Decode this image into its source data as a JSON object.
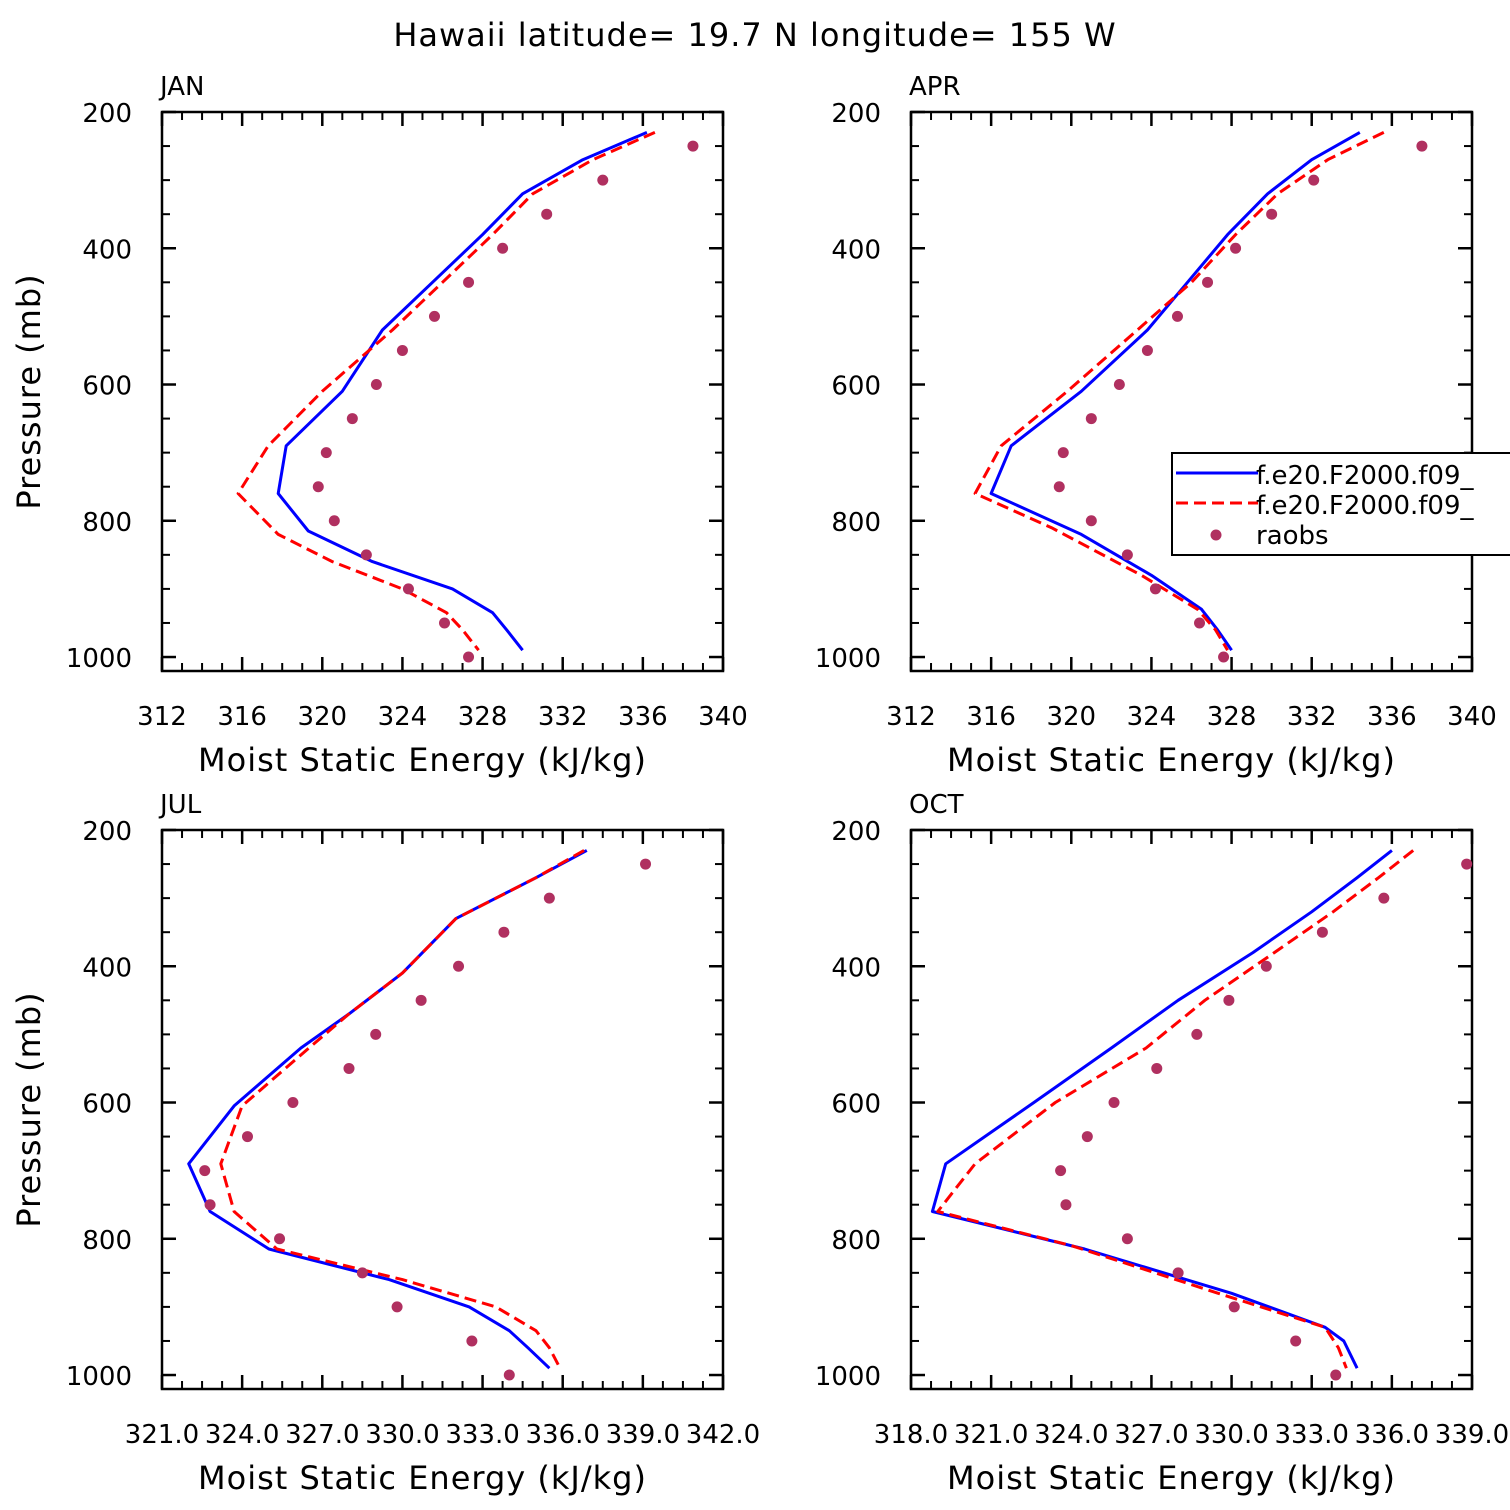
{
  "figure": {
    "title": "Hawaii  latitude= 19.7 N longitude= 155 W"
  },
  "legend": {
    "entries": [
      {
        "label": "f.e20.F2000.f09_",
        "color": "#0000ff",
        "style": "solid"
      },
      {
        "label": "f.e20.F2000.f09_",
        "color": "#ff0000",
        "style": "dashed"
      },
      {
        "label": "raobs",
        "color": "#b03060",
        "style": "dot"
      }
    ]
  },
  "chart_data": [
    {
      "type": "line",
      "panel": "JAN",
      "xlabel": "Moist Static Energy (kJ/kg)",
      "ylabel": "Pressure (mb)",
      "xlim": [
        312,
        340
      ],
      "ylim": [
        1000,
        200
      ],
      "xticks": [
        "312",
        "316",
        "320",
        "324",
        "328",
        "332",
        "336",
        "340"
      ],
      "yticks": [
        "200",
        "400",
        "600",
        "800",
        "1000"
      ],
      "series": [
        {
          "name": "f.e20.F2000.f09_",
          "color": "#0000ff",
          "style": "solid",
          "x": [
            336.2,
            333.0,
            330.0,
            328.0,
            325.5,
            323.0,
            321.0,
            318.2,
            317.8,
            319.3,
            322.5,
            326.5,
            328.5,
            329.2,
            330.0
          ],
          "y": [
            230,
            270,
            320,
            380,
            450,
            520,
            610,
            690,
            760,
            815,
            860,
            900,
            935,
            960,
            990
          ]
        },
        {
          "name": "f.e20.F2000.f09_",
          "color": "#ff0000",
          "style": "dashed",
          "x": [
            336.6,
            333.5,
            330.5,
            328.5,
            326.0,
            323.5,
            320.0,
            317.3,
            315.8,
            317.8,
            320.5,
            324.0,
            326.2,
            327.0,
            327.8
          ],
          "y": [
            230,
            270,
            320,
            380,
            450,
            520,
            610,
            690,
            760,
            820,
            860,
            900,
            935,
            960,
            990
          ]
        },
        {
          "name": "raobs",
          "color": "#b03060",
          "style": "dot",
          "x": [
            338.5,
            334.0,
            331.2,
            329.0,
            327.3,
            325.6,
            324.0,
            322.7,
            321.5,
            320.2,
            319.8,
            320.6,
            322.2,
            324.3,
            326.1,
            327.3
          ],
          "y": [
            250,
            300,
            350,
            400,
            450,
            500,
            550,
            600,
            650,
            700,
            750,
            800,
            850,
            900,
            950,
            1000
          ]
        }
      ]
    },
    {
      "type": "line",
      "panel": "APR",
      "xlabel": "Moist Static Energy (kJ/kg)",
      "ylabel": "",
      "xlim": [
        312,
        340
      ],
      "ylim": [
        1000,
        200
      ],
      "xticks": [
        "312",
        "316",
        "320",
        "324",
        "328",
        "332",
        "336",
        "340"
      ],
      "yticks": [
        "200",
        "400",
        "600",
        "800",
        "1000"
      ],
      "series": [
        {
          "name": "f.e20.F2000.f09_",
          "color": "#0000ff",
          "style": "solid",
          "x": [
            334.4,
            332.0,
            329.8,
            327.8,
            325.8,
            323.8,
            320.5,
            317.0,
            316.0,
            320.5,
            324.0,
            326.5,
            327.3,
            328.0
          ],
          "y": [
            230,
            270,
            320,
            380,
            450,
            520,
            610,
            690,
            760,
            820,
            880,
            930,
            960,
            990
          ]
        },
        {
          "name": "f.e20.F2000.f09_",
          "color": "#ff0000",
          "style": "dashed",
          "x": [
            335.6,
            332.8,
            330.3,
            328.2,
            326.0,
            323.3,
            319.8,
            316.5,
            315.2,
            319.0,
            323.5,
            326.3,
            327.2,
            327.8
          ],
          "y": [
            230,
            270,
            320,
            380,
            450,
            520,
            610,
            690,
            760,
            810,
            880,
            930,
            960,
            990
          ]
        },
        {
          "name": "raobs",
          "color": "#b03060",
          "style": "dot",
          "x": [
            337.5,
            332.1,
            330.0,
            328.2,
            326.8,
            325.3,
            323.8,
            322.4,
            321.0,
            319.6,
            319.4,
            321.0,
            322.8,
            324.2,
            326.4,
            327.6
          ],
          "y": [
            250,
            300,
            350,
            400,
            450,
            500,
            550,
            600,
            650,
            700,
            750,
            800,
            850,
            900,
            950,
            1000
          ]
        }
      ]
    },
    {
      "type": "line",
      "panel": "JUL",
      "xlabel": "Moist Static Energy (kJ/kg)",
      "ylabel": "Pressure (mb)",
      "xlim": [
        321.0,
        342.0
      ],
      "ylim": [
        1000,
        200
      ],
      "xticks": [
        "321.0",
        "324.0",
        "327.0",
        "330.0",
        "333.0",
        "336.0",
        "339.0",
        "342.0"
      ],
      "yticks": [
        "200",
        "400",
        "600",
        "800",
        "1000"
      ],
      "series": [
        {
          "name": "f.e20.F2000.f09_",
          "color": "#0000ff",
          "style": "solid",
          "x": [
            336.9,
            335.0,
            332.0,
            330.0,
            328.0,
            326.2,
            323.7,
            322.0,
            322.8,
            325.0,
            329.5,
            332.5,
            334.0,
            334.7,
            335.5
          ],
          "y": [
            230,
            270,
            330,
            410,
            470,
            520,
            605,
            690,
            760,
            815,
            860,
            900,
            935,
            960,
            990
          ]
        },
        {
          "name": "f.e20.F2000.f09_",
          "color": "#ff0000",
          "style": "dashed",
          "x": [
            336.8,
            335.0,
            332.0,
            330.0,
            328.0,
            326.5,
            324.0,
            323.2,
            323.7,
            325.3,
            330.0,
            333.5,
            335.0,
            335.5,
            335.9
          ],
          "y": [
            230,
            270,
            330,
            410,
            470,
            520,
            605,
            690,
            760,
            815,
            860,
            900,
            935,
            960,
            990
          ]
        },
        {
          "name": "raobs",
          "color": "#b03060",
          "style": "dot",
          "x": [
            339.1,
            335.5,
            333.8,
            332.1,
            330.7,
            329.0,
            328.0,
            325.9,
            324.2,
            322.6,
            322.8,
            325.4,
            328.5,
            329.8,
            332.6,
            334.0
          ],
          "y": [
            250,
            300,
            350,
            400,
            450,
            500,
            550,
            600,
            650,
            700,
            750,
            800,
            850,
            900,
            950,
            1000
          ]
        }
      ]
    },
    {
      "type": "line",
      "panel": "OCT",
      "xlabel": "Moist Static Energy (kJ/kg)",
      "ylabel": "",
      "xlim": [
        318.0,
        339.0
      ],
      "ylim": [
        1000,
        200
      ],
      "xticks": [
        "318.0",
        "321.0",
        "324.0",
        "327.0",
        "330.0",
        "333.0",
        "336.0",
        "339.0"
      ],
      "yticks": [
        "200",
        "400",
        "600",
        "800",
        "1000"
      ],
      "series": [
        {
          "name": "f.e20.F2000.f09_",
          "color": "#0000ff",
          "style": "solid",
          "x": [
            336.0,
            334.7,
            333.0,
            330.8,
            328.0,
            325.5,
            322.6,
            319.3,
            318.8,
            324.5,
            330.0,
            333.5,
            334.2,
            334.7
          ],
          "y": [
            230,
            270,
            320,
            380,
            450,
            520,
            600,
            690,
            760,
            815,
            880,
            930,
            950,
            990
          ]
        },
        {
          "name": "f.e20.F2000.f09_",
          "color": "#ff0000",
          "style": "dashed",
          "x": [
            336.8,
            335.5,
            333.8,
            331.6,
            329.0,
            326.8,
            323.4,
            320.4,
            319.0,
            324.0,
            329.5,
            333.5,
            334.0,
            334.3
          ],
          "y": [
            230,
            270,
            320,
            380,
            450,
            520,
            600,
            690,
            760,
            810,
            880,
            930,
            960,
            990
          ]
        },
        {
          "name": "raobs",
          "color": "#b03060",
          "style": "dot",
          "x": [
            338.8,
            335.7,
            333.4,
            331.3,
            329.9,
            328.7,
            327.2,
            325.6,
            324.6,
            323.6,
            323.8,
            326.1,
            328.0,
            330.1,
            332.4,
            333.9
          ],
          "y": [
            250,
            300,
            350,
            400,
            450,
            500,
            550,
            600,
            650,
            700,
            750,
            800,
            850,
            900,
            950,
            1000
          ]
        }
      ]
    }
  ]
}
